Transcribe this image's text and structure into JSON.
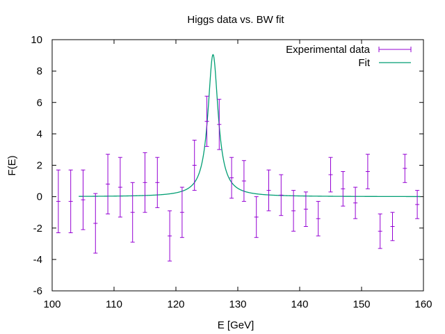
{
  "chart_data": {
    "type": "scatter",
    "title": "Higgs data vs. BW fit",
    "xlabel": "E [GeV]",
    "ylabel": "F(E)",
    "xlim": [
      100,
      160
    ],
    "ylim": [
      -6,
      10
    ],
    "xticks": [
      100,
      110,
      120,
      130,
      140,
      150,
      160
    ],
    "yticks": [
      -6,
      -4,
      -2,
      0,
      2,
      4,
      6,
      8,
      10
    ],
    "grid": false,
    "legend_position": "top-right",
    "colors": {
      "data": "#9400d3",
      "fit": "#009e73"
    },
    "series": [
      {
        "name": "Experimental data",
        "kind": "errorbar",
        "x": [
          101,
          103,
          105,
          107,
          109,
          111,
          113,
          115,
          117,
          119,
          121,
          123,
          125,
          127,
          129,
          131,
          133,
          135,
          137,
          139,
          141,
          143,
          145,
          147,
          149,
          151,
          153,
          155,
          157,
          159
        ],
        "y": [
          -0.3,
          -0.3,
          -0.2,
          -1.7,
          0.8,
          0.6,
          -1.0,
          0.9,
          0.9,
          -2.5,
          -1.0,
          2.0,
          4.8,
          4.6,
          1.2,
          1.0,
          -1.3,
          0.4,
          0.1,
          -0.9,
          -0.8,
          -1.4,
          1.4,
          0.5,
          -0.4,
          1.6,
          -2.2,
          -1.9,
          1.8,
          -0.5
        ],
        "yerr": [
          2.0,
          2.0,
          1.9,
          1.9,
          1.9,
          1.9,
          1.9,
          1.9,
          1.6,
          1.6,
          1.6,
          1.6,
          1.6,
          1.6,
          1.3,
          1.3,
          1.3,
          1.3,
          1.3,
          1.3,
          1.1,
          1.1,
          1.1,
          1.1,
          1.0,
          1.1,
          1.1,
          0.9,
          0.9,
          0.9
        ]
      },
      {
        "name": "Fit",
        "kind": "line",
        "model": "breit-wigner",
        "peak_x": 126,
        "peak_y": 9.05,
        "half_width": 1.0
      }
    ]
  }
}
